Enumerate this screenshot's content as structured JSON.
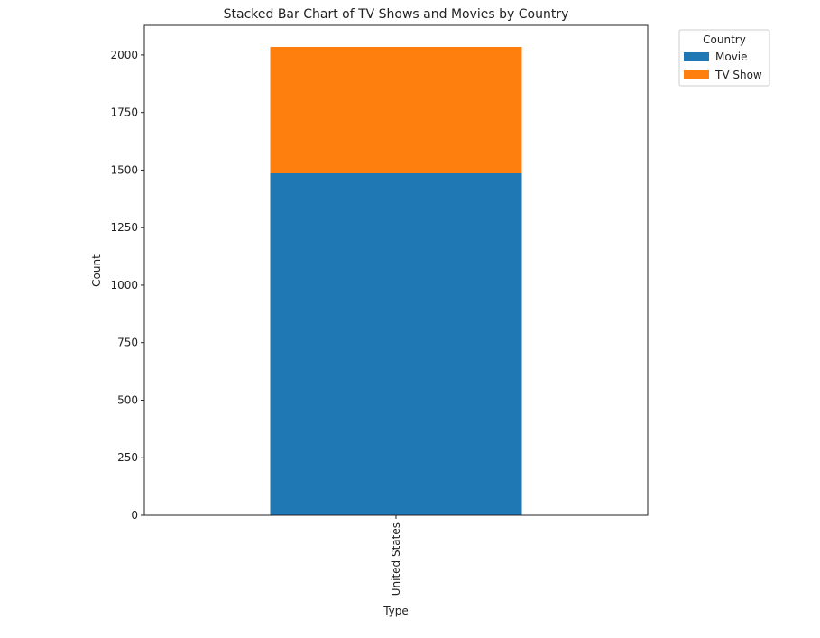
{
  "chart_data": {
    "type": "stacked-bar",
    "title": "Stacked Bar Chart of TV Shows and Movies by Country",
    "x_label": "Type",
    "y_label": "Count",
    "categories": [
      "United States"
    ],
    "series": [
      {
        "name": "Movie",
        "color": "#1f77b4",
        "values": [
          1486
        ]
      },
      {
        "name": "TV Show",
        "color": "#ff7f0e",
        "values": [
          549
        ]
      }
    ],
    "legend_title": "Country",
    "ylim": [
      0,
      2129
    ],
    "yticks": [
      0,
      250,
      500,
      750,
      1000,
      1250,
      1500,
      1750,
      2000
    ]
  }
}
